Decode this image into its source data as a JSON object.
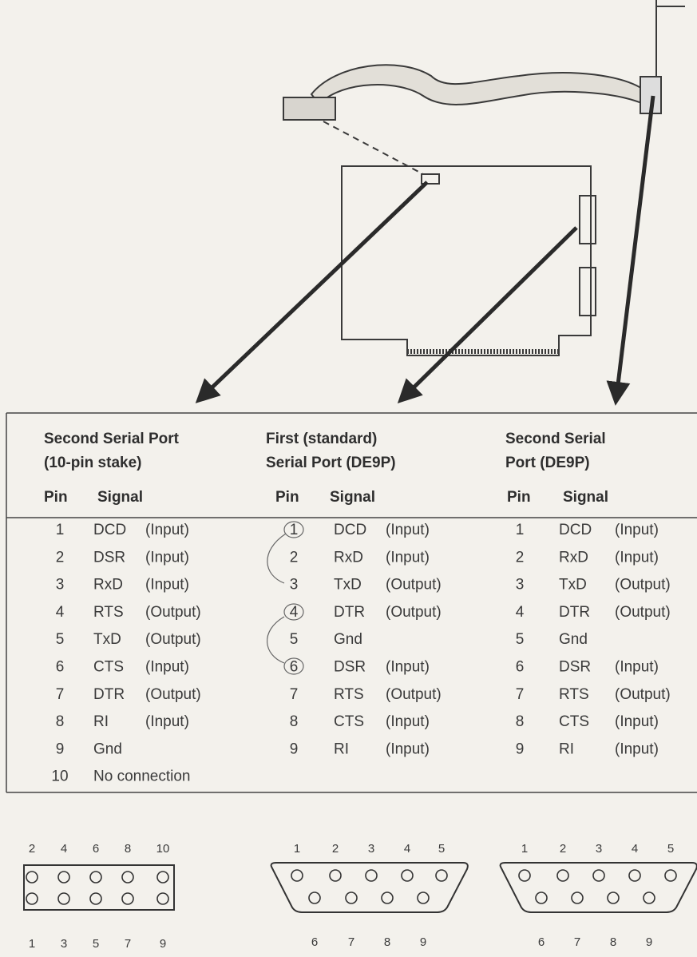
{
  "columns": [
    {
      "title": [
        "Second Serial Port",
        "(10-pin stake)"
      ],
      "header": [
        "Pin",
        "Signal"
      ],
      "rows": [
        [
          1,
          "DCD",
          "(Input)"
        ],
        [
          2,
          "DSR",
          "(Input)"
        ],
        [
          3,
          "RxD",
          "(Input)"
        ],
        [
          4,
          "RTS",
          "(Output)"
        ],
        [
          5,
          "TxD",
          "(Output)"
        ],
        [
          6,
          "CTS",
          "(Input)"
        ],
        [
          7,
          "DTR",
          "(Output)"
        ],
        [
          8,
          "RI",
          "(Input)"
        ],
        [
          9,
          "Gnd"
        ],
        [
          10,
          "No connection"
        ]
      ]
    },
    {
      "title": [
        "First (standard)",
        "Serial Port (DE9P)"
      ],
      "header": [
        "Pin",
        "Signal"
      ],
      "rows": [
        [
          1,
          "DCD",
          "(Input)"
        ],
        [
          2,
          "RxD",
          "(Input)"
        ],
        [
          3,
          "TxD",
          "(Output)"
        ],
        [
          4,
          "DTR",
          "(Output)"
        ],
        [
          5,
          "Gnd"
        ],
        [
          6,
          "DSR",
          "(Input)"
        ],
        [
          7,
          "RTS",
          "(Output)"
        ],
        [
          8,
          "CTS",
          "(Input)"
        ],
        [
          9,
          "RI",
          "(Input)"
        ]
      ]
    },
    {
      "title": [
        "Second Serial",
        "Port (DE9P)"
      ],
      "header": [
        "Pin",
        "Signal"
      ],
      "rows": [
        [
          1,
          "DCD",
          "(Input)"
        ],
        [
          2,
          "RxD",
          "(Input)"
        ],
        [
          3,
          "TxD",
          "(Output)"
        ],
        [
          4,
          "DTR",
          "(Output)"
        ],
        [
          5,
          "Gnd"
        ],
        [
          6,
          "DSR",
          "(Input)"
        ],
        [
          7,
          "RTS",
          "(Output)"
        ],
        [
          8,
          "CTS",
          "(Input)"
        ],
        [
          9,
          "RI",
          "(Input)"
        ]
      ]
    }
  ],
  "connectors": [
    {
      "top": [
        2,
        4,
        6,
        8,
        10
      ],
      "bottom": [
        1,
        3,
        5,
        7,
        9
      ]
    },
    {
      "top": [
        1,
        2,
        3,
        4,
        5
      ],
      "bottom": [
        6,
        7,
        8,
        9
      ]
    },
    {
      "top": [
        1,
        2,
        3,
        4,
        5
      ],
      "bottom": [
        6,
        7,
        8,
        9
      ]
    }
  ]
}
